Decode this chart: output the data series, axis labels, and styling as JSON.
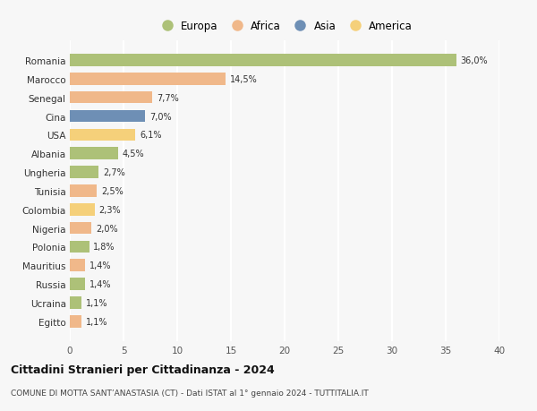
{
  "categories": [
    "Romania",
    "Marocco",
    "Senegal",
    "Cina",
    "USA",
    "Albania",
    "Ungheria",
    "Tunisia",
    "Colombia",
    "Nigeria",
    "Polonia",
    "Mauritius",
    "Russia",
    "Ucraina",
    "Egitto"
  ],
  "values": [
    36.0,
    14.5,
    7.7,
    7.0,
    6.1,
    4.5,
    2.7,
    2.5,
    2.3,
    2.0,
    1.8,
    1.4,
    1.4,
    1.1,
    1.1
  ],
  "labels": [
    "36,0%",
    "14,5%",
    "7,7%",
    "7,0%",
    "6,1%",
    "4,5%",
    "2,7%",
    "2,5%",
    "2,3%",
    "2,0%",
    "1,8%",
    "1,4%",
    "1,4%",
    "1,1%",
    "1,1%"
  ],
  "colors": [
    "#adc178",
    "#f0b88a",
    "#f0b88a",
    "#6e8fb5",
    "#f5d07a",
    "#adc178",
    "#adc178",
    "#f0b88a",
    "#f5d07a",
    "#f0b88a",
    "#adc178",
    "#f0b88a",
    "#adc178",
    "#adc178",
    "#f0b88a"
  ],
  "legend_labels": [
    "Europa",
    "Africa",
    "Asia",
    "America"
  ],
  "legend_colors": [
    "#adc178",
    "#f0b88a",
    "#6e8fb5",
    "#f5d07a"
  ],
  "title": "Cittadini Stranieri per Cittadinanza - 2024",
  "subtitle": "COMUNE DI MOTTA SANT’ANASTASIA (CT) - Dati ISTAT al 1° gennaio 2024 - TUTTITALIA.IT",
  "xlim": [
    0,
    40
  ],
  "xticks": [
    0,
    5,
    10,
    15,
    20,
    25,
    30,
    35,
    40
  ],
  "background_color": "#f7f7f7",
  "grid_color": "#ffffff",
  "bar_height": 0.65
}
